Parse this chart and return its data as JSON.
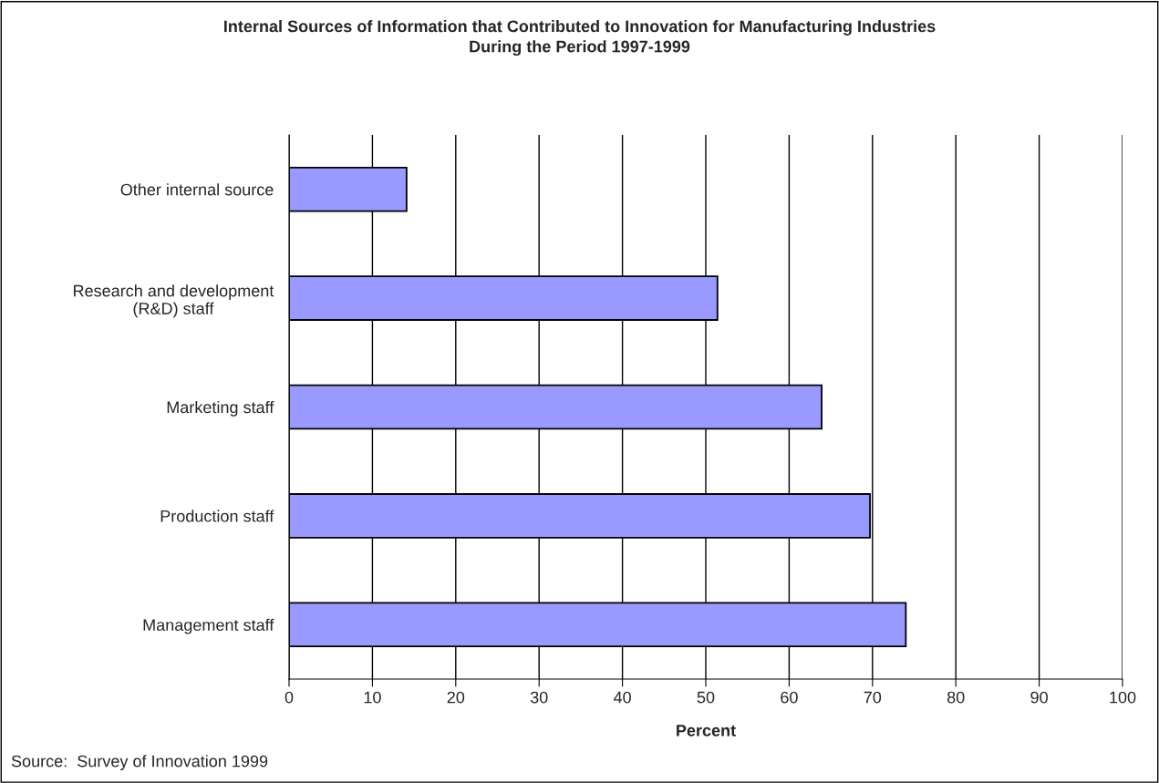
{
  "chart_data": {
    "type": "bar",
    "orientation": "horizontal",
    "title": "Internal Sources of Information that Contributed to Innovation for Manufacturing Industries\nDuring the Period 1997-1999",
    "xlabel": "Percent",
    "categories": [
      "Other internal source",
      "Research and development\n(R&D) staff",
      "Marketing staff",
      "Production staff",
      "Management staff"
    ],
    "values": [
      14.1,
      51.4,
      63.9,
      69.7,
      74.0
    ],
    "color": "#9999ff",
    "xlim": [
      0,
      100
    ],
    "xticks": [
      0,
      10,
      20,
      30,
      40,
      50,
      60,
      70,
      80,
      90,
      100
    ],
    "grid": "x",
    "legend": false,
    "annotations": [
      "Source:  Survey of Innovation 1999"
    ]
  }
}
